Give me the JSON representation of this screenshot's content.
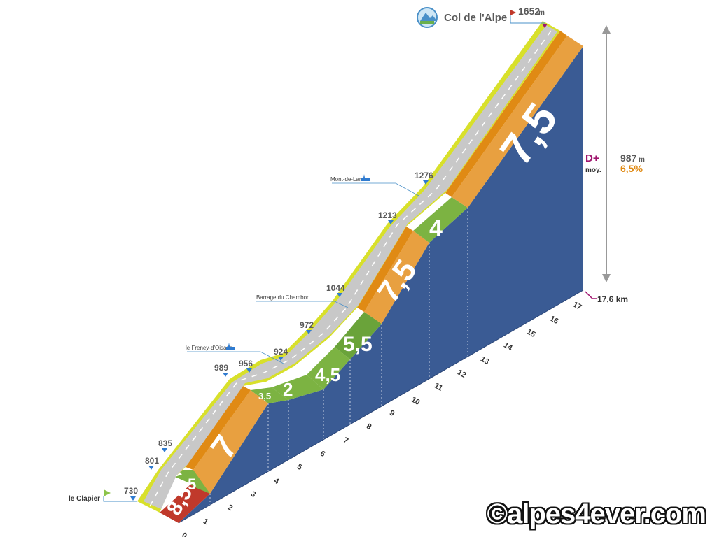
{
  "summit": {
    "name": "Col de l'Alpe",
    "altitude": "1652",
    "unit": "m"
  },
  "start": {
    "name": "le Clapier",
    "altitude": "730"
  },
  "stats": {
    "dplus_label": "D+",
    "dplus_value": "987",
    "dplus_unit": "m",
    "avg_label": "moy.",
    "avg_value": "6,5%"
  },
  "distance_label": "17,6 km",
  "watermark": "©alpes4ever.com",
  "colors": {
    "road": "#c8c8c8",
    "verge": "#d8e02a",
    "side": "#3a5b94",
    "red": "#c0392b",
    "green": "#7cb342",
    "lightgreen": "#9ccc65",
    "orange": "#e08a14",
    "lightorange": "#f0b050"
  },
  "chart_data": {
    "type": "area",
    "title": "Col de l'Alpe",
    "xlabel": "",
    "ylabel": "",
    "x_ticks": [
      0,
      1,
      2,
      3,
      4,
      5,
      6,
      7,
      8,
      9,
      10,
      11,
      12,
      13,
      14,
      15,
      16,
      17
    ],
    "xlim": [
      0,
      17.6
    ],
    "profile_points": [
      {
        "km": 0,
        "alt": 730
      },
      {
        "km": 1,
        "alt": 801
      },
      {
        "km": 1.5,
        "alt": 835
      },
      {
        "km": 3.5,
        "alt": 989
      },
      {
        "km": 4.5,
        "alt": 956
      },
      {
        "km": 5.5,
        "alt": 924
      },
      {
        "km": 6.5,
        "alt": 972
      },
      {
        "km": 8,
        "alt": 1044
      },
      {
        "km": 10,
        "alt": 1213
      },
      {
        "km": 11,
        "alt": 1276
      },
      {
        "km": 17.6,
        "alt": 1652
      }
    ],
    "segments": [
      {
        "from": 0,
        "to": 1,
        "grade": "8,5",
        "color": "red"
      },
      {
        "from": 1,
        "to": 2,
        "grade": "5",
        "color": "green"
      },
      {
        "from": 2,
        "to": 4,
        "grade": "7",
        "color": "orange"
      },
      {
        "from": 4,
        "to": 4.7,
        "grade": "3,5",
        "color": "lightgreen"
      },
      {
        "from": 4.7,
        "to": 6,
        "grade": "2",
        "color": "green"
      },
      {
        "from": 6,
        "to": 7,
        "grade": "4,5",
        "color": "lightgreen"
      },
      {
        "from": 7,
        "to": 8,
        "grade": "5,5",
        "color": "green"
      },
      {
        "from": 8,
        "to": 10.5,
        "grade": "7,5",
        "color": "orange"
      },
      {
        "from": 10.5,
        "to": 12,
        "grade": "4",
        "color": "green"
      },
      {
        "from": 12,
        "to": 17.6,
        "grade": "7,5",
        "color": "orange"
      }
    ],
    "annotations": [
      {
        "label": "le Freney-d'Oisans",
        "alt": "924"
      },
      {
        "label": "Barrage du Chambon",
        "alt": "1044"
      },
      {
        "label": "Mont-de-Lans",
        "alt": "1276"
      }
    ]
  }
}
